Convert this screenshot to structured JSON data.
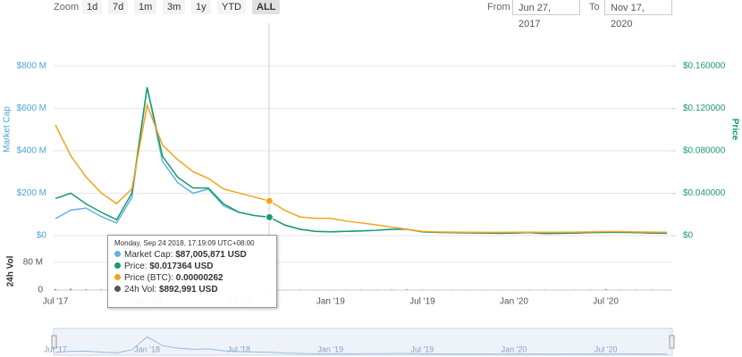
{
  "toolbar": {
    "zoom_label": "Zoom",
    "buttons": [
      "1d",
      "7d",
      "1m",
      "3m",
      "1y",
      "YTD",
      "ALL"
    ],
    "from_label": "From",
    "from": "Jun 27, 2017",
    "to_label": "To",
    "to": "Nov 17, 2020"
  },
  "tooltip": {
    "date": "Monday, Sep 24 2018, 17:19:09 UTC+08:00",
    "items": [
      {
        "label": "Market Cap:",
        "value": "$87,005,871 USD",
        "color": "#62b3e0"
      },
      {
        "label": "Price:",
        "value": "$0.017364 USD",
        "color": "#1a9a6c"
      },
      {
        "label": "Price (BTC):",
        "value": "0.00000262",
        "color": "#f7a21b"
      },
      {
        "label": "24h Vol:",
        "value": "$892,991 USD",
        "color": "#555555"
      }
    ]
  },
  "chart_data": {
    "type": "line",
    "y_label": "Market Cap",
    "y2_label": "Price",
    "vol_label": "24h Vol",
    "categories": [
      "Jul '17",
      null,
      null,
      null,
      null,
      null,
      "Jan '18",
      null,
      null,
      null,
      null,
      null,
      "Jul '18",
      null,
      null,
      null,
      null,
      null,
      "Jan '19",
      null,
      null,
      null,
      null,
      null,
      "Jul '19",
      null,
      null,
      null,
      null,
      null,
      "Jan '20",
      null,
      null,
      null,
      null,
      null,
      "Jul '20",
      null,
      null,
      null,
      null
    ],
    "ylim": [
      0,
      1000000000
    ],
    "yticks": [
      {
        "value": 0,
        "label": "$0"
      },
      {
        "value": 200000000,
        "label": "$200 M"
      },
      {
        "value": 400000000,
        "label": "$400 M"
      },
      {
        "value": 600000000,
        "label": "$600 M"
      },
      {
        "value": 800000000,
        "label": "$800 M"
      }
    ],
    "y2lim": [
      0,
      0.2
    ],
    "y2ticks": [
      {
        "value": 0,
        "label": "$0"
      },
      {
        "value": 0.04,
        "label": "$0.040000"
      },
      {
        "value": 0.08,
        "label": "$0.080000"
      },
      {
        "value": 0.12,
        "label": "$0.120000"
      },
      {
        "value": 0.16,
        "label": "$0.160000"
      }
    ],
    "y3lim": [
      0,
      1.59e-05
    ],
    "vollim": [
      0,
      110000000
    ],
    "volticks": [
      0,
      {
        "value": 80000000,
        "label": "80 M"
      }
    ],
    "grid": true,
    "series": [
      {
        "name": "Market Cap",
        "color": "#62b3e0",
        "axis": "y",
        "values": [
          80000000,
          120000000,
          130000000,
          90000000,
          60000000,
          180000000,
          700000000,
          350000000,
          250000000,
          200000000,
          220000000,
          140000000,
          110000000,
          95000000,
          87000000,
          50000000,
          30000000,
          20000000,
          18000000,
          20000000,
          22000000,
          25000000,
          30000000,
          30000000,
          18000000,
          15000000,
          14000000,
          13000000,
          12000000,
          11000000,
          12000000,
          14000000,
          10000000,
          11000000,
          12000000,
          14000000,
          15000000,
          16000000,
          14000000,
          12000000,
          11000000
        ]
      },
      {
        "name": "Price",
        "color": "#1a9a6c",
        "axis": "y2",
        "values": [
          0.035,
          0.04,
          0.03,
          0.022,
          0.015,
          0.04,
          0.14,
          0.075,
          0.055,
          0.045,
          0.045,
          0.03,
          0.022,
          0.019,
          0.0174,
          0.01,
          0.006,
          0.004,
          0.0036,
          0.004,
          0.0044,
          0.005,
          0.006,
          0.006,
          0.0036,
          0.003,
          0.0028,
          0.0026,
          0.0024,
          0.0022,
          0.0024,
          0.0028,
          0.002,
          0.0022,
          0.0024,
          0.0028,
          0.003,
          0.0032,
          0.0028,
          0.0024,
          0.0022
        ]
      },
      {
        "name": "Price (BTC)",
        "color": "#f7a21b",
        "axis": "y3",
        "values": [
          8.3e-06,
          6e-06,
          4.4e-06,
          3.2e-06,
          2.4e-06,
          3.5e-06,
          9.8e-06,
          6.8e-06,
          5.7e-06,
          4.8e-06,
          4.3e-06,
          3.5e-06,
          3.2e-06,
          2.9e-06,
          2.6e-06,
          1.9e-06,
          1.4e-06,
          1.3e-06,
          1.3e-06,
          1.1e-06,
          9.5e-07,
          8e-07,
          6.4e-07,
          4.8e-07,
          3.2e-07,
          2.8e-07,
          2.6e-07,
          2.5e-07,
          2.4e-07,
          2.4e-07,
          2.5e-07,
          2.6e-07,
          2.4e-07,
          2.5e-07,
          2.6e-07,
          2.8e-07,
          3e-07,
          3e-07,
          2.8e-07,
          2.6e-07,
          2.5e-07
        ]
      },
      {
        "name": "24h Vol",
        "color": "#888888",
        "axis": "vol",
        "values": [
          3000000,
          4000000,
          2000000,
          2000000,
          1500000,
          3000000,
          8000000,
          4000000,
          2500000,
          2000000,
          2000000,
          1500000,
          1200000,
          1000000,
          900000,
          800000,
          700000,
          600000,
          600000,
          700000,
          800000,
          900000,
          1500000,
          2000000,
          1000000,
          800000,
          700000,
          600000,
          600000,
          500000,
          600000,
          700000,
          800000,
          600000,
          700000,
          900000,
          3000000,
          1200000,
          900000,
          800000,
          700000
        ]
      }
    ]
  }
}
